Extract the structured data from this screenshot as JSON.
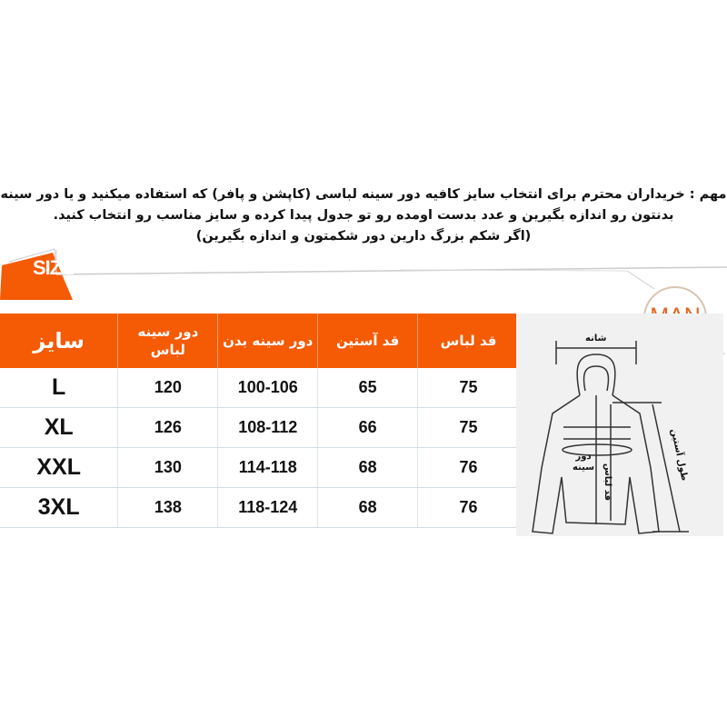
{
  "notice": {
    "line1": "مهم : خریداران محترم برای انتخاب سایز کافیه دور سینه لباسی (کاپشن و پافر) که استفاده میکنید و یا دور سینه",
    "line2": "بدنتون رو اندازه بگیرین و عدد بدست اومده رو تو جدول پیدا کرده و سایز مناسب رو انتخاب کنید.",
    "line3": "(اگر شکم بزرگ دارین دور شکمتون و اندازه بگیرین)"
  },
  "banner": {
    "size_label": "SIZE",
    "man_label": "MAN",
    "accent": "#f55a04"
  },
  "table": {
    "headers": [
      "سایز",
      "دور سینه لباس",
      "دور سینه بدن",
      "قد آستین",
      "قد لباس"
    ],
    "rows": [
      [
        "L",
        "120",
        "100-106",
        "65",
        "75"
      ],
      [
        "XL",
        "126",
        "108-112",
        "66",
        "75"
      ],
      [
        "XXL",
        "130",
        "114-118",
        "68",
        "76"
      ],
      [
        "3XL",
        "138",
        "118-124",
        "68",
        "76"
      ]
    ]
  },
  "diagram": {
    "shoulder": "شانه",
    "chest_1": "دور",
    "chest_2": "سینه",
    "length": "قد لباس",
    "sleeve": "طول آستین"
  }
}
